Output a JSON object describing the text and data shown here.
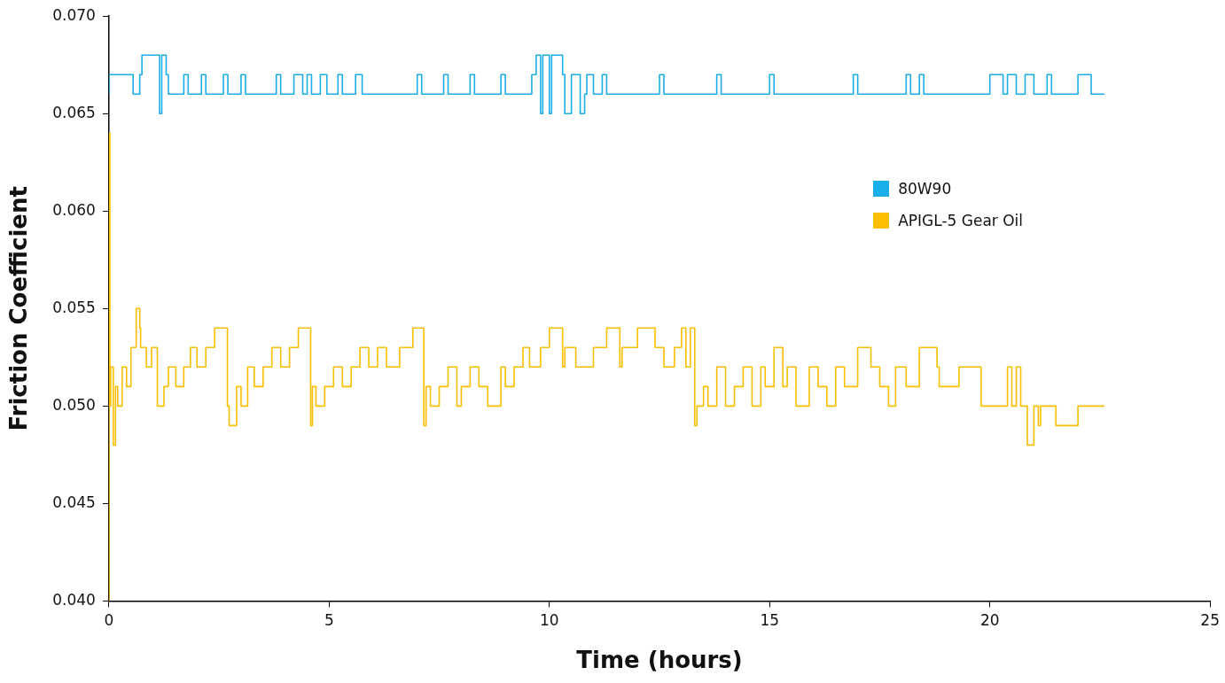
{
  "chart_data": {
    "type": "step",
    "xlabel": "Time (hours)",
    "ylabel": "Friction Coefficient",
    "xlim": [
      0,
      25
    ],
    "xticks": [
      0,
      5,
      10,
      15,
      20,
      25
    ],
    "ylim": [
      0.04,
      0.07
    ],
    "yticks": [
      {
        "value": 0.04,
        "label": "0.040"
      },
      {
        "value": 0.045,
        "label": "0.045"
      },
      {
        "value": 0.05,
        "label": "0.050"
      },
      {
        "value": 0.055,
        "label": "0.055"
      },
      {
        "value": 0.06,
        "label": "0.060"
      },
      {
        "value": 0.065,
        "label": "0.065"
      },
      {
        "value": 0.07,
        "label": "0.070"
      }
    ],
    "grid": false,
    "legend": "right",
    "marker": "none",
    "line_style": "solid",
    "series": [
      {
        "name": "80W90",
        "color": "#1aaeea",
        "x": [
          0,
          0.55,
          0.7,
          0.75,
          1.15,
          1.2,
          1.3,
          1.35,
          1.7,
          1.8,
          2.1,
          2.2,
          2.6,
          2.7,
          3.0,
          3.1,
          3.8,
          3.9,
          4.2,
          4.4,
          4.5,
          4.6,
          4.8,
          4.95,
          5.2,
          5.3,
          5.6,
          5.75,
          7.0,
          7.1,
          7.6,
          7.7,
          8.2,
          8.3,
          8.9,
          9.0,
          9.6,
          9.7,
          9.8,
          9.85,
          10.0,
          10.05,
          10.3,
          10.35,
          10.5,
          10.7,
          10.8,
          10.85,
          11.0,
          11.2,
          11.3,
          12.5,
          12.6,
          13.8,
          13.9,
          15.0,
          15.1,
          16.9,
          17.0,
          18.1,
          18.2,
          18.4,
          18.5,
          20.0,
          20.3,
          20.4,
          20.6,
          20.8,
          21.0,
          21.3,
          21.4,
          22.0,
          22.3,
          22.35,
          22.6
        ],
        "values": [
          0.066,
          0.067,
          0.066,
          0.067,
          0.068,
          0.065,
          0.068,
          0.067,
          0.066,
          0.067,
          0.066,
          0.067,
          0.066,
          0.067,
          0.066,
          0.067,
          0.066,
          0.067,
          0.066,
          0.067,
          0.066,
          0.067,
          0.066,
          0.067,
          0.066,
          0.067,
          0.066,
          0.067,
          0.066,
          0.067,
          0.066,
          0.067,
          0.066,
          0.067,
          0.066,
          0.067,
          0.066,
          0.067,
          0.068,
          0.065,
          0.068,
          0.065,
          0.068,
          0.067,
          0.065,
          0.067,
          0.065,
          0.066,
          0.067,
          0.066,
          0.067,
          0.066,
          0.067,
          0.066,
          0.067,
          0.066,
          0.067,
          0.066,
          0.067,
          0.066,
          0.067,
          0.066,
          0.067,
          0.066,
          0.067,
          0.066,
          0.067,
          0.066,
          0.067,
          0.066,
          0.067,
          0.066,
          0.067,
          0.066,
          0.066
        ]
      },
      {
        "name": "APIGL-5 Gear Oil",
        "color": "#fbbf00",
        "x": [
          0,
          0.02,
          0.04,
          0.1,
          0.15,
          0.2,
          0.3,
          0.4,
          0.5,
          0.62,
          0.7,
          0.72,
          0.85,
          0.97,
          1.1,
          1.25,
          1.35,
          1.52,
          1.7,
          1.85,
          2.0,
          2.2,
          2.4,
          2.69,
          2.73,
          2.9,
          3.0,
          3.15,
          3.3,
          3.5,
          3.7,
          3.9,
          4.1,
          4.3,
          4.58,
          4.62,
          4.7,
          4.9,
          5.1,
          5.3,
          5.5,
          5.7,
          5.9,
          6.1,
          6.3,
          6.6,
          6.9,
          7.15,
          7.2,
          7.3,
          7.5,
          7.7,
          7.9,
          8.0,
          8.2,
          8.4,
          8.6,
          8.9,
          9.0,
          9.2,
          9.4,
          9.55,
          9.8,
          10.0,
          10.3,
          10.35,
          10.6,
          11.0,
          11.3,
          11.6,
          11.65,
          12.0,
          12.4,
          12.6,
          12.84,
          13.0,
          13.1,
          13.2,
          13.3,
          13.35,
          13.5,
          13.6,
          13.8,
          14.0,
          14.2,
          14.4,
          14.6,
          14.8,
          14.9,
          15.1,
          15.3,
          15.4,
          15.6,
          15.9,
          16.1,
          16.3,
          16.5,
          16.7,
          17.0,
          17.3,
          17.5,
          17.7,
          17.86,
          18.1,
          18.4,
          18.8,
          18.85,
          19.3,
          19.8,
          20.4,
          20.5,
          20.6,
          20.7,
          20.85,
          21.0,
          21.1,
          21.15,
          21.5,
          22.0,
          22.6
        ],
        "values": [
          0.04,
          0.064,
          0.05,
          0.052,
          0.048,
          0.051,
          0.05,
          0.052,
          0.051,
          0.053,
          0.055,
          0.054,
          0.053,
          0.052,
          0.053,
          0.05,
          0.051,
          0.052,
          0.051,
          0.052,
          0.053,
          0.052,
          0.053,
          0.054,
          0.05,
          0.049,
          0.051,
          0.05,
          0.052,
          0.051,
          0.052,
          0.053,
          0.052,
          0.053,
          0.054,
          0.049,
          0.051,
          0.05,
          0.051,
          0.052,
          0.051,
          0.052,
          0.053,
          0.052,
          0.053,
          0.052,
          0.053,
          0.054,
          0.049,
          0.051,
          0.05,
          0.051,
          0.052,
          0.05,
          0.051,
          0.052,
          0.051,
          0.05,
          0.052,
          0.051,
          0.052,
          0.053,
          0.052,
          0.053,
          0.054,
          0.052,
          0.053,
          0.052,
          0.053,
          0.054,
          0.052,
          0.053,
          0.054,
          0.053,
          0.052,
          0.053,
          0.054,
          0.052,
          0.054,
          0.049,
          0.05,
          0.051,
          0.05,
          0.052,
          0.05,
          0.051,
          0.052,
          0.05,
          0.052,
          0.051,
          0.053,
          0.051,
          0.052,
          0.05,
          0.052,
          0.051,
          0.05,
          0.052,
          0.051,
          0.053,
          0.052,
          0.051,
          0.05,
          0.052,
          0.051,
          0.053,
          0.052,
          0.051,
          0.052,
          0.05,
          0.052,
          0.05,
          0.052,
          0.05,
          0.048,
          0.05,
          0.049,
          0.05,
          0.049,
          0.05
        ]
      }
    ]
  }
}
